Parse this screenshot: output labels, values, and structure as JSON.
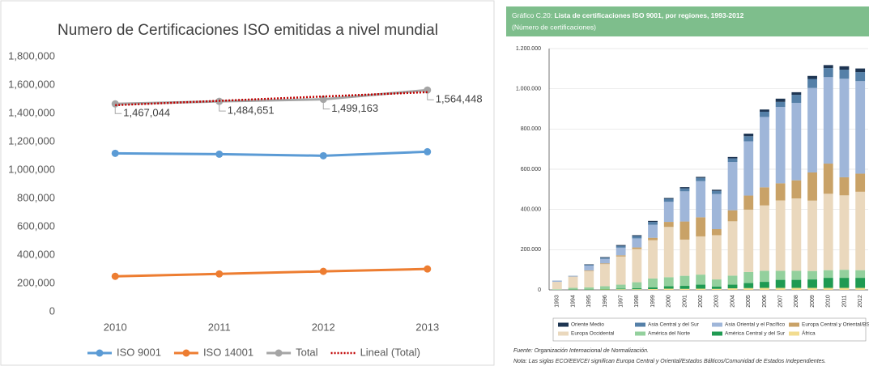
{
  "chart_data": [
    {
      "type": "line",
      "title": "Numero de Certificaciones ISO emitidas a nivel mundial",
      "categories": [
        "2010",
        "2011",
        "2012",
        "2013"
      ],
      "series": [
        {
          "name": "ISO 9001",
          "color": "#5b9bd5",
          "values": [
            1118000,
            1112000,
            1101000,
            1129000
          ]
        },
        {
          "name": "ISO 14001",
          "color": "#ed7d31",
          "values": [
            250000,
            267000,
            285000,
            302000
          ]
        },
        {
          "name": "Total",
          "color": "#a5a5a5",
          "values": [
            1467044,
            1484651,
            1499163,
            1564448
          ],
          "value_labels": [
            "1,467,044",
            "1,484,651",
            "1,499,163",
            "1,564,448"
          ]
        },
        {
          "name": "Lineal (Total)",
          "color": "#c00000",
          "line_style": "dotted",
          "values": [
            1457818,
            1488490,
            1519163,
            1549835
          ]
        }
      ],
      "ylim": [
        0,
        1800000
      ],
      "yticks": [
        0,
        {
          "value": 200000,
          "label": "200,000"
        },
        {
          "value": 400000,
          "label": "400,000"
        },
        {
          "value": 600000,
          "label": "600,000"
        },
        {
          "value": 800000,
          "label": "800,000"
        },
        {
          "value": 1000000,
          "label": "1,000,000"
        },
        {
          "value": 1200000,
          "label": "1,200,000"
        },
        {
          "value": 1400000,
          "label": "1,400,000"
        },
        {
          "value": 1600000,
          "label": "1,600,000"
        },
        {
          "value": 1800000,
          "label": "1,800,000"
        }
      ],
      "grid": false,
      "legend": "bottom"
    },
    {
      "type": "stacked_bar",
      "figure_label": "Gráfico C.20:",
      "title": "Lista de certificaciones ISO 9001, por regiones, 1993-2012",
      "subtitle": "(Número de certificaciones)",
      "categories": [
        "1993",
        "1994",
        "1995",
        "1996",
        "1997",
        "1998",
        "1999",
        "2000",
        "2001",
        "2002",
        "2003",
        "2004",
        "2005",
        "2006",
        "2007",
        "2008",
        "2009",
        "2010",
        "2011",
        "2012"
      ],
      "series": [
        {
          "name": "África",
          "color": "#f2dc8f",
          "values": [
            0,
            1000,
            1000,
            2000,
            3000,
            3000,
            4000,
            6000,
            5000,
            6000,
            5000,
            8000,
            9000,
            10000,
            10000,
            10000,
            10000,
            10000,
            10000,
            10000
          ]
        },
        {
          "name": "América Central y del Sur",
          "color": "#1f9a52",
          "values": [
            0,
            1000,
            1000,
            2000,
            3000,
            5000,
            8000,
            12000,
            15000,
            20000,
            12000,
            18000,
            25000,
            30000,
            40000,
            40000,
            42000,
            50000,
            50000,
            50000
          ]
        },
        {
          "name": "América del Norte",
          "color": "#93d09d",
          "values": [
            3000,
            8000,
            10000,
            14000,
            20000,
            30000,
            45000,
            45000,
            50000,
            50000,
            35000,
            45000,
            55000,
            55000,
            45000,
            45000,
            42000,
            38000,
            40000,
            38000
          ]
        },
        {
          "name": "Europa Occidental",
          "color": "#ead8bd",
          "values": [
            37000,
            55000,
            82000,
            110000,
            140000,
            165000,
            190000,
            250000,
            180000,
            190000,
            220000,
            270000,
            310000,
            325000,
            350000,
            360000,
            350000,
            380000,
            370000,
            390000
          ]
        },
        {
          "name": "Europa Central y Oriental/BS/CEI",
          "color": "#c9a267",
          "values": [
            0,
            1000,
            3000,
            4000,
            6000,
            8000,
            12000,
            25000,
            90000,
            95000,
            30000,
            55000,
            70000,
            90000,
            85000,
            90000,
            140000,
            150000,
            90000,
            90000
          ]
        },
        {
          "name": "Asia Oriental y el Pacífico",
          "color": "#9fb6d9",
          "values": [
            5000,
            3000,
            24000,
            22000,
            38000,
            45000,
            65000,
            100000,
            150000,
            180000,
            175000,
            240000,
            270000,
            350000,
            380000,
            385000,
            420000,
            430000,
            490000,
            460000
          ]
        },
        {
          "name": "Asia Central y del Sur",
          "color": "#5580a8",
          "values": [
            1000,
            1000,
            4000,
            6000,
            9000,
            12000,
            14000,
            15000,
            15000,
            16000,
            15000,
            18000,
            25000,
            26000,
            25000,
            40000,
            45000,
            45000,
            45000,
            45000
          ]
        },
        {
          "name": "Oriente Medio",
          "color": "#1e3552",
          "values": [
            0,
            0,
            2000,
            3000,
            4000,
            4000,
            5000,
            4000,
            6000,
            5000,
            6000,
            7000,
            13000,
            11000,
            16000,
            13000,
            15000,
            15000,
            17000,
            18000
          ]
        }
      ],
      "ylim": [
        0,
        1200000
      ],
      "yticks": [
        0,
        {
          "value": 200000,
          "label": "200.000"
        },
        {
          "value": 400000,
          "label": "400.000"
        },
        {
          "value": 600000,
          "label": "600.000"
        },
        {
          "value": 800000,
          "label": "800.000"
        },
        {
          "value": 1000000,
          "label": "1.000.000"
        },
        {
          "value": 1200000,
          "label": "1.200.000"
        }
      ],
      "grid": true,
      "legend": "bottom",
      "source": "Fuente: Organización Internacional de Normalización.",
      "note": "Nota: Las siglas ECO/EEI/CEI significan Europa Central y Oriental/Estados Bálticos/Comunidad de Estados Independientes."
    }
  ]
}
